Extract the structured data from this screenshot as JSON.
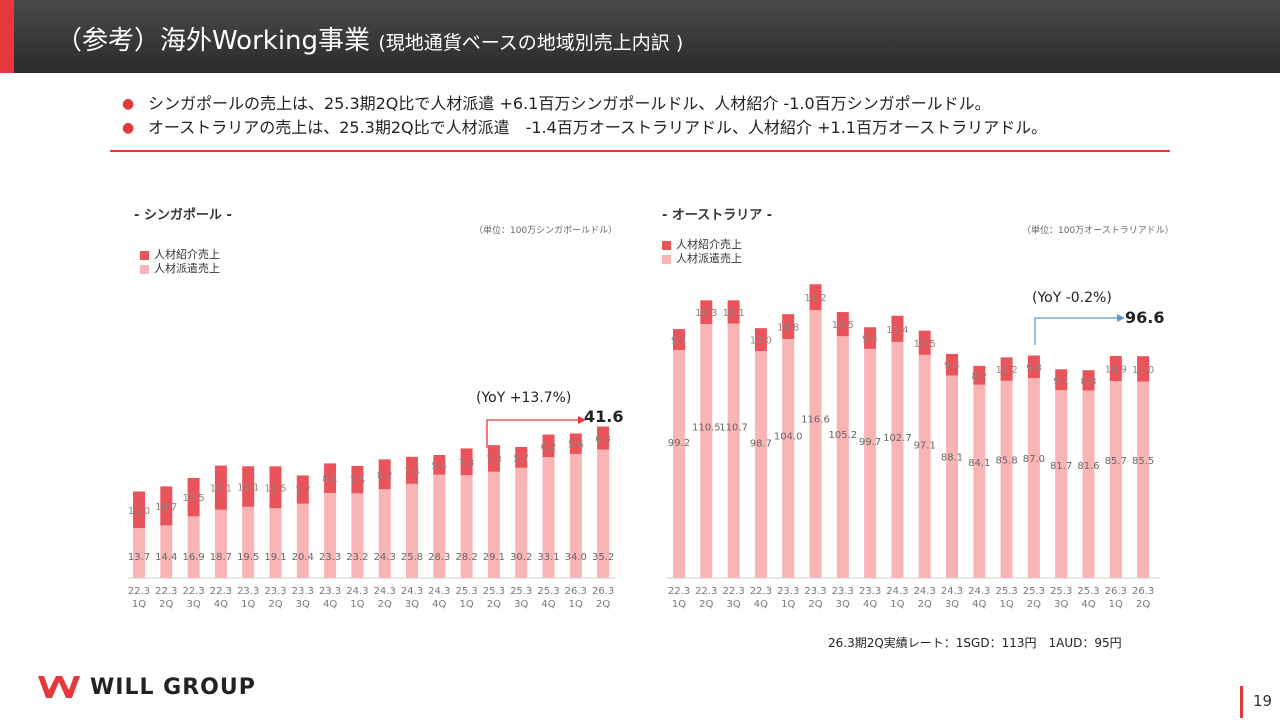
{
  "header": {
    "title_main": "（参考）海外Working事業",
    "title_sub": "(現地通貨ベースの地域別売上内訳 )"
  },
  "bullets": [
    "シンガポールの売上は、25.3期2Q比で人材派遣 +6.1百万シンガポールドル、人材紹介 -1.0百万シンガポールドル。",
    "オーストラリアの売上は、25.3期2Q比で人材派遣　-1.4百万オーストラリアドル、人材紹介 +1.1百万オーストラリアドル。"
  ],
  "bullet_marker": "●",
  "colors": {
    "accent": "#e4383c",
    "placement": "#e8545a",
    "dispatch": "#f9b4b6",
    "arrow_sg": "#e4383c",
    "arrow_au": "#5b9bd5"
  },
  "chart_data": [
    {
      "type": "bar",
      "stacked": true,
      "title": "- シンガポール -",
      "unit_label": "（単位：100万シンガポールドル）",
      "categories": [
        [
          "22.3",
          "1Q"
        ],
        [
          "22.3",
          "2Q"
        ],
        [
          "22.3",
          "3Q"
        ],
        [
          "22.3",
          "4Q"
        ],
        [
          "23.3",
          "1Q"
        ],
        [
          "23.3",
          "2Q"
        ],
        [
          "23.3",
          "3Q"
        ],
        [
          "23.3",
          "4Q"
        ],
        [
          "24.3",
          "1Q"
        ],
        [
          "24.3",
          "2Q"
        ],
        [
          "24.3",
          "3Q"
        ],
        [
          "24.3",
          "4Q"
        ],
        [
          "25.3",
          "1Q"
        ],
        [
          "25.3",
          "2Q"
        ],
        [
          "25.3",
          "3Q"
        ],
        [
          "25.3",
          "4Q"
        ],
        [
          "26.3",
          "1Q"
        ],
        [
          "26.3",
          "2Q"
        ]
      ],
      "series": [
        {
          "name": "人材派遣売上",
          "values": [
            13.7,
            14.4,
            16.9,
            18.7,
            19.5,
            19.1,
            20.4,
            23.3,
            23.2,
            24.3,
            25.8,
            28.3,
            28.2,
            29.1,
            30.2,
            33.1,
            34.0,
            35.2
          ]
        },
        {
          "name": "人材紹介売上",
          "values": [
            10.0,
            10.7,
            10.5,
            12.1,
            11.1,
            11.5,
            7.7,
            8.1,
            7.5,
            8.2,
            7.4,
            5.4,
            7.3,
            7.3,
            5.7,
            6.2,
            5.6,
            6.3
          ]
        }
      ],
      "legend": [
        "人材紹介売上",
        "人材派遣売上"
      ],
      "ylim": [
        0,
        60
      ],
      "annotation": {
        "yoy": "(YoY +13.7%)",
        "total": "41.6"
      }
    },
    {
      "type": "bar",
      "stacked": true,
      "title": "- オーストラリア -",
      "unit_label": "（単位：100万オーストラリアドル）",
      "categories": [
        [
          "22.3",
          "1Q"
        ],
        [
          "22.3",
          "2Q"
        ],
        [
          "22.3",
          "3Q"
        ],
        [
          "22.3",
          "4Q"
        ],
        [
          "23.3",
          "1Q"
        ],
        [
          "23.3",
          "2Q"
        ],
        [
          "23.3",
          "3Q"
        ],
        [
          "23.3",
          "4Q"
        ],
        [
          "24.3",
          "1Q"
        ],
        [
          "24.3",
          "2Q"
        ],
        [
          "24.3",
          "3Q"
        ],
        [
          "24.3",
          "4Q"
        ],
        [
          "25.3",
          "1Q"
        ],
        [
          "25.3",
          "2Q"
        ],
        [
          "25.3",
          "3Q"
        ],
        [
          "25.3",
          "4Q"
        ],
        [
          "26.3",
          "1Q"
        ],
        [
          "26.3",
          "2Q"
        ]
      ],
      "series": [
        {
          "name": "人材派遣売上",
          "values": [
            99.2,
            110.5,
            110.7,
            98.7,
            104.0,
            116.6,
            105.2,
            99.7,
            102.7,
            97.1,
            88.1,
            84.1,
            85.8,
            87.0,
            81.7,
            81.6,
            85.7,
            85.5
          ]
        },
        {
          "name": "人材紹介売上",
          "values": [
            9.1,
            10.3,
            10.1,
            10.0,
            10.8,
            11.2,
            10.5,
            9.4,
            11.4,
            10.5,
            9.4,
            8.2,
            10.2,
            9.8,
            9.1,
            8.8,
            10.9,
            11.0
          ]
        }
      ],
      "legend": [
        "人材紹介売上",
        "人材派遣売上"
      ],
      "ylim": [
        0,
        130
      ],
      "annotation": {
        "yoy": "(YoY -0.2%)",
        "total": "96.6"
      }
    }
  ],
  "footer": {
    "rate": "26.3期2Q実績レート：1SGD：113円　1AUD：95円",
    "logo": "WILL GROUP",
    "page": "19"
  }
}
